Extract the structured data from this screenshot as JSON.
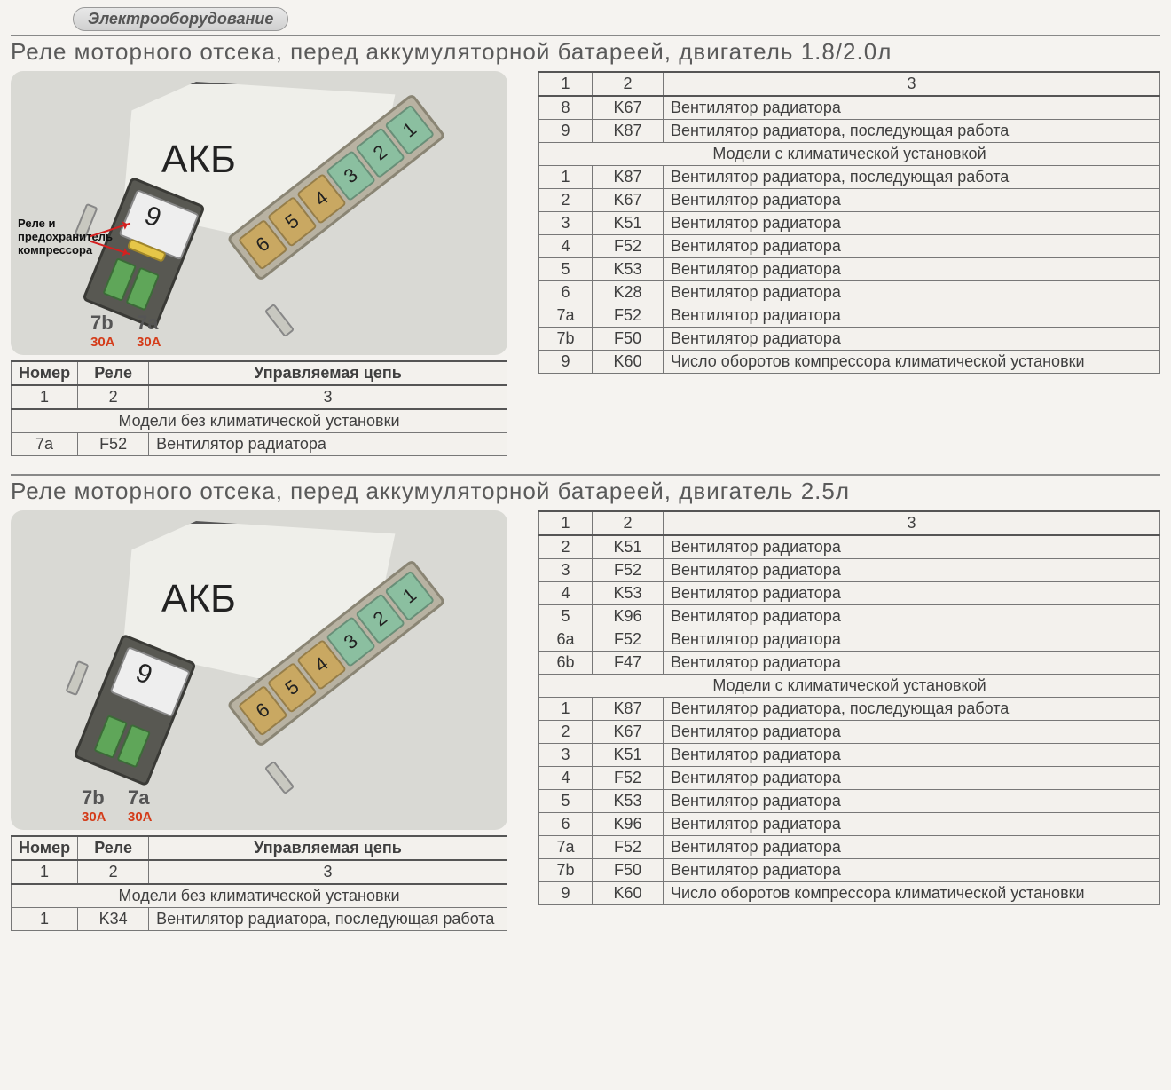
{
  "header": "Электрооборудование",
  "section1": {
    "title": "Реле моторного отсека, перед аккумуляторной батареей, двигатель 1.8/2.0л",
    "diagram": {
      "akb": "АКБ",
      "relay_num": "9",
      "note": "Реле и предохранитель компрессора",
      "lab7b": "7b",
      "lab7a": "7a",
      "amp7b": "30A",
      "amp7a": "30A",
      "fuses": [
        {
          "n": "6",
          "cls": "tan"
        },
        {
          "n": "5",
          "cls": "tan"
        },
        {
          "n": "4",
          "cls": "tan"
        },
        {
          "n": "3",
          "cls": "green"
        },
        {
          "n": "2",
          "cls": "green"
        },
        {
          "n": "1",
          "cls": "green"
        }
      ]
    },
    "leftTable": {
      "headers": [
        "Номер",
        "Реле",
        "Управляемая цепь"
      ],
      "numrow": [
        "1",
        "2",
        "3"
      ],
      "span": "Модели без климатической установки",
      "rows": [
        [
          "7a",
          "F52",
          "Вентилятор радиатора"
        ]
      ]
    },
    "rightTable": {
      "numrow": [
        "1",
        "2",
        "3"
      ],
      "rows1": [
        [
          "8",
          "K67",
          "Вентилятор радиатора"
        ],
        [
          "9",
          "K87",
          "Вентилятор радиатора, последующая работа"
        ]
      ],
      "span": "Модели с климатической установкой",
      "rows2": [
        [
          "1",
          "K87",
          "Вентилятор радиатора, последующая работа"
        ],
        [
          "2",
          "K67",
          "Вентилятор радиатора"
        ],
        [
          "3",
          "K51",
          "Вентилятор радиатора"
        ],
        [
          "4",
          "F52",
          "Вентилятор радиатора"
        ],
        [
          "5",
          "K53",
          "Вентилятор радиатора"
        ],
        [
          "6",
          "K28",
          "Вентилятор радиатора"
        ],
        [
          "7a",
          "F52",
          "Вентилятор радиатора"
        ],
        [
          "7b",
          "F50",
          "Вентилятор радиатора"
        ],
        [
          "9",
          "K60",
          "Число оборотов компрессора климатической установки"
        ]
      ]
    }
  },
  "section2": {
    "title": "Реле моторного отсека, перед аккумуляторной батареей, двигатель 2.5л",
    "diagram": {
      "akb": "АКБ",
      "relay_num": "9",
      "lab7b": "7b",
      "lab7a": "7a",
      "amp7b": "30A",
      "amp7a": "30A",
      "fuses": [
        {
          "n": "6",
          "cls": "tan"
        },
        {
          "n": "5",
          "cls": "tan"
        },
        {
          "n": "4",
          "cls": "tan"
        },
        {
          "n": "3",
          "cls": "green"
        },
        {
          "n": "2",
          "cls": "green"
        },
        {
          "n": "1",
          "cls": "green"
        }
      ]
    },
    "leftTable": {
      "headers": [
        "Номер",
        "Реле",
        "Управляемая цепь"
      ],
      "numrow": [
        "1",
        "2",
        "3"
      ],
      "span": "Модели без климатической установки",
      "rows": [
        [
          "1",
          "K34",
          "Вентилятор радиатора, последующая работа"
        ]
      ]
    },
    "rightTable": {
      "numrow": [
        "1",
        "2",
        "3"
      ],
      "rows1": [
        [
          "2",
          "K51",
          "Вентилятор радиатора"
        ],
        [
          "3",
          "F52",
          "Вентилятор радиатора"
        ],
        [
          "4",
          "K53",
          "Вентилятор радиатора"
        ],
        [
          "5",
          "K96",
          "Вентилятор радиатора"
        ],
        [
          "6a",
          "F52",
          "Вентилятор радиатора"
        ],
        [
          "6b",
          "F47",
          "Вентилятор радиатора"
        ]
      ],
      "span": "Модели с климатической установкой",
      "rows2": [
        [
          "1",
          "K87",
          "Вентилятор радиатора, последующая работа"
        ],
        [
          "2",
          "K67",
          "Вентилятор радиатора"
        ],
        [
          "3",
          "K51",
          "Вентилятор радиатора"
        ],
        [
          "4",
          "F52",
          "Вентилятор радиатора"
        ],
        [
          "5",
          "K53",
          "Вентилятор радиатора"
        ],
        [
          "6",
          "K96",
          "Вентилятор радиатора"
        ],
        [
          "7a",
          "F52",
          "Вентилятор радиатора"
        ],
        [
          "7b",
          "F50",
          "Вентилятор радиатора"
        ],
        [
          "9",
          "K60",
          "Число оборотов компрессора климатической установки"
        ]
      ]
    }
  },
  "colors": {
    "fuse_green": "#8bbfa0",
    "fuse_tan": "#c9a862",
    "relay_body": "#585852",
    "diagram_bg": "#d9d9d4",
    "amp_red": "#d43c1a",
    "arrow_red": "#d42020"
  }
}
